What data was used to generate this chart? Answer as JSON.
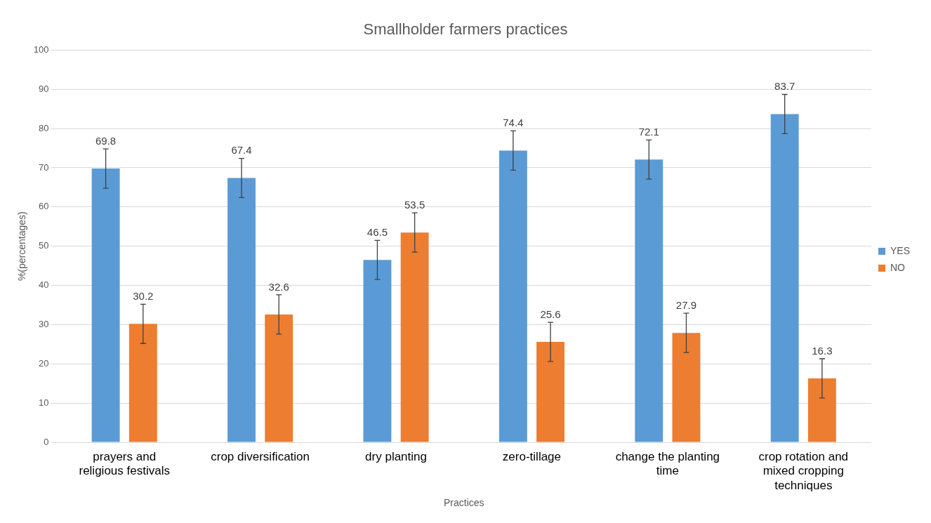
{
  "chart_data": {
    "type": "bar",
    "title": "Smallholder farmers practices",
    "xlabel": "Practices",
    "ylabel": "%(percentages)",
    "categories": [
      "prayers and religious festivals",
      "crop diversification",
      "dry planting",
      "zero-tillage",
      "change the planting time",
      "crop rotation and mixed cropping techniques"
    ],
    "series": [
      {
        "name": "YES",
        "color": "#5b9bd5",
        "values": [
          69.8,
          67.4,
          46.5,
          74.4,
          72.1,
          83.7
        ],
        "errors": [
          5,
          5,
          5,
          5,
          5,
          5
        ]
      },
      {
        "name": "NO",
        "color": "#ed7d31",
        "values": [
          30.2,
          32.6,
          53.5,
          25.6,
          27.9,
          16.3
        ],
        "errors": [
          5,
          5,
          5,
          5,
          5,
          5
        ]
      }
    ],
    "ylim": [
      0,
      100
    ],
    "yticks": [
      0,
      10,
      20,
      30,
      40,
      50,
      60,
      70,
      80,
      90,
      100
    ],
    "grid": "y",
    "legend": "right",
    "data_labels": true
  }
}
